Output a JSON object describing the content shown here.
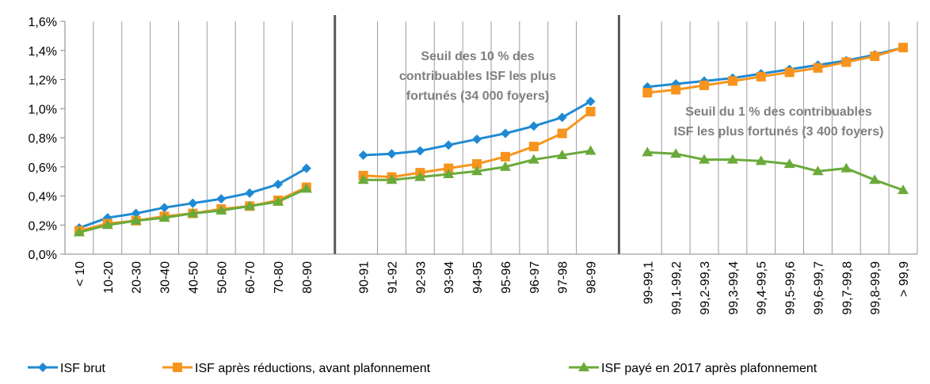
{
  "chart_data": {
    "type": "line",
    "categories": [
      "< 10",
      "10-20",
      "20-30",
      "30-40",
      "40-50",
      "50-60",
      "60-70",
      "70-80",
      "80-90",
      null,
      "90-91",
      "91-92",
      "92-93",
      "93-94",
      "94-95",
      "95-96",
      "96-97",
      "97-98",
      "98-99",
      null,
      "99-99,1",
      "99,1-99,2",
      "99,2-99,3",
      "99,3-99,4",
      "99,4-99,5",
      "99,5-99,6",
      "99,6-99,7",
      "99,7-99,8",
      "99,8-99,9",
      "> 99,9"
    ],
    "series": [
      {
        "name": "ISF brut",
        "color": "#1f8ad3",
        "marker": "diamond",
        "values": [
          0.18,
          0.25,
          0.28,
          0.32,
          0.35,
          0.38,
          0.42,
          0.48,
          0.59,
          null,
          0.68,
          0.69,
          0.71,
          0.75,
          0.79,
          0.83,
          0.88,
          0.94,
          1.05,
          null,
          1.15,
          1.17,
          1.19,
          1.21,
          1.24,
          1.27,
          1.3,
          1.33,
          1.37,
          1.42
        ]
      },
      {
        "name": "ISF après réductions, avant plafonnement",
        "color": "#f7941d",
        "marker": "square",
        "values": [
          0.16,
          0.21,
          0.23,
          0.26,
          0.28,
          0.31,
          0.33,
          0.37,
          0.46,
          null,
          0.54,
          0.53,
          0.56,
          0.59,
          0.62,
          0.67,
          0.74,
          0.83,
          0.98,
          null,
          1.11,
          1.13,
          1.16,
          1.19,
          1.22,
          1.25,
          1.28,
          1.32,
          1.36,
          1.42
        ]
      },
      {
        "name": "ISF payé en 2017 après plafonnement",
        "color": "#6aaa3a",
        "marker": "triangle",
        "values": [
          0.15,
          0.2,
          0.23,
          0.25,
          0.28,
          0.3,
          0.33,
          0.36,
          0.45,
          null,
          0.51,
          0.51,
          0.53,
          0.55,
          0.57,
          0.6,
          0.65,
          0.68,
          0.71,
          null,
          0.7,
          0.69,
          0.65,
          0.65,
          0.64,
          0.62,
          0.57,
          0.59,
          0.51,
          0.44
        ]
      }
    ],
    "ylim": [
      0,
      1.6
    ],
    "yticks": [
      {
        "value": 0,
        "label": "0,0%"
      },
      {
        "value": 0.2,
        "label": "0,2%"
      },
      {
        "value": 0.4,
        "label": "0,4%"
      },
      {
        "value": 0.6,
        "label": "0,6%"
      },
      {
        "value": 0.8,
        "label": "0,8%"
      },
      {
        "value": 1.0,
        "label": "1,0%"
      },
      {
        "value": 1.2,
        "label": "1,2%"
      },
      {
        "value": 1.4,
        "label": "1,4%"
      },
      {
        "value": 1.6,
        "label": "1,6%"
      }
    ],
    "annotations": [
      {
        "lines": [
          "Seuil des 10 % des",
          "contribuables ISF les plus",
          "fortunés (34 000 foyers)"
        ]
      },
      {
        "lines": [
          "Seuil du 1 % des contribuables",
          "ISF les plus fortunés (3 400 foyers)"
        ]
      }
    ],
    "legend": "bottom"
  }
}
